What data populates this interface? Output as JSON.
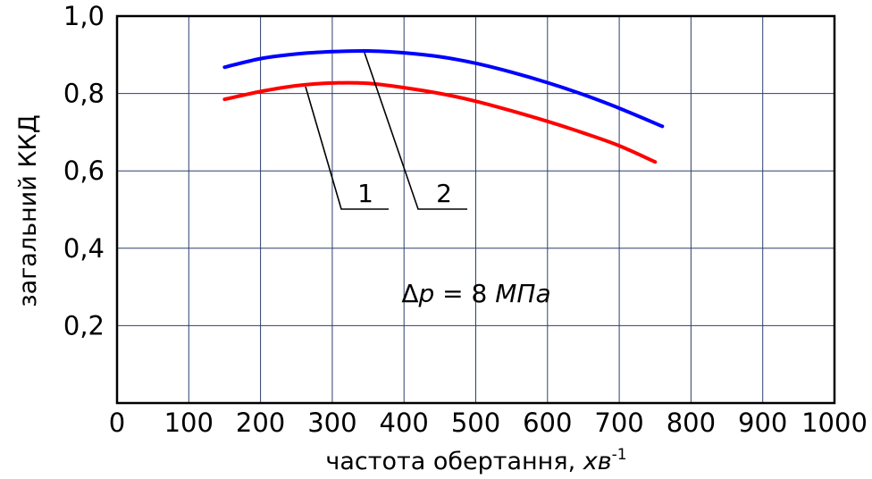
{
  "chart_data": {
    "type": "line",
    "xlabel_text": "частота обертання, ",
    "xlabel_unit": "хв",
    "xlabel_sup": "-1",
    "ylabel": "загальний ККД",
    "xlim": [
      0,
      1000
    ],
    "ylim": [
      0,
      1.0
    ],
    "x_ticks": [
      0,
      100,
      200,
      300,
      400,
      500,
      600,
      700,
      800,
      900,
      1000
    ],
    "x_tick_labels": [
      "0",
      "100",
      "200",
      "300",
      "400",
      "500",
      "600",
      "700",
      "800",
      "900",
      "1000"
    ],
    "y_ticks": [
      0.2,
      0.4,
      0.6,
      0.8,
      1.0
    ],
    "y_tick_labels": [
      "0,2",
      "0,4",
      "0,6",
      "0,8",
      "1,0"
    ],
    "grid": true,
    "annotation": {
      "delta": "Δ",
      "var": "p",
      "rest": " = 8 ",
      "unit": "МПа"
    },
    "series": [
      {
        "name": "1",
        "color": "#ff0000",
        "x": [
          150,
          200,
          250,
          300,
          350,
          400,
          450,
          500,
          550,
          600,
          650,
          700,
          750
        ],
        "y": [
          0.785,
          0.805,
          0.82,
          0.827,
          0.826,
          0.815,
          0.8,
          0.78,
          0.755,
          0.728,
          0.698,
          0.665,
          0.623
        ]
      },
      {
        "name": "2",
        "color": "#0000ff",
        "x": [
          150,
          200,
          250,
          300,
          350,
          400,
          450,
          500,
          550,
          600,
          650,
          700,
          760
        ],
        "y": [
          0.868,
          0.89,
          0.902,
          0.908,
          0.91,
          0.905,
          0.895,
          0.878,
          0.855,
          0.828,
          0.797,
          0.762,
          0.715
        ]
      }
    ]
  }
}
